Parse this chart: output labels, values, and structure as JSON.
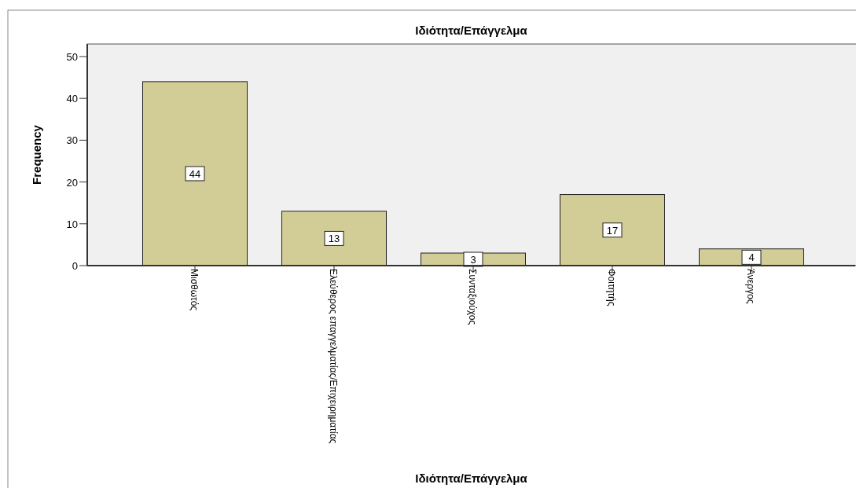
{
  "chart_data": {
    "type": "bar",
    "title": "Ιδιότητα/Επάγγελμα",
    "xlabel": "Ιδιότητα/Επάγγελμα",
    "ylabel": "Frequency",
    "categories": [
      "Μισθωτός",
      "Ελεύθερος επαγγελματίας/Επιχειρηματίας",
      "Συνταξιούχος",
      "Φοιτητής",
      "Άνεργος"
    ],
    "values": [
      44,
      13,
      3,
      17,
      4
    ],
    "color": "#d2cd96",
    "ylim": [
      0,
      53
    ],
    "yticks": [
      0,
      10,
      20,
      30,
      40,
      50
    ],
    "data_labels": true
  }
}
